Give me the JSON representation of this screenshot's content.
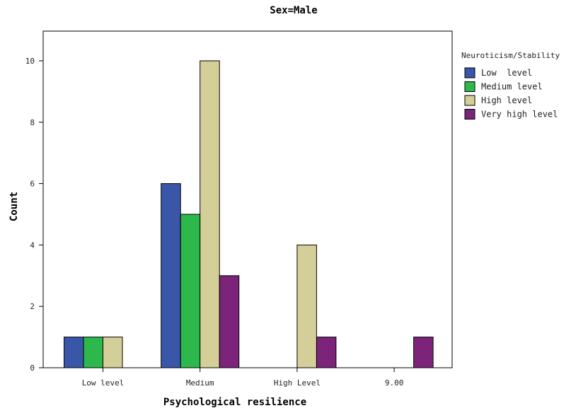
{
  "chart_data": {
    "type": "bar",
    "title": "Sex=Male",
    "xlabel": "Psychological resilience",
    "ylabel": "Count",
    "categories": [
      "Low level",
      "Medium",
      "High Level",
      "9.00"
    ],
    "ylim": [
      0,
      11
    ],
    "yticks": [
      0,
      2,
      4,
      6,
      8,
      10
    ],
    "grid": false,
    "legend": {
      "title": "Neuroticism/Stability",
      "placement": "right",
      "labels": [
        "Low  level",
        "Medium level",
        "High level",
        "Very high level"
      ]
    },
    "series": [
      {
        "name": "Low  level",
        "color": "#3a56a8",
        "values": [
          1,
          6,
          0,
          0
        ]
      },
      {
        "name": "Medium level",
        "color": "#2db84b",
        "values": [
          1,
          5,
          0,
          0
        ]
      },
      {
        "name": "High level",
        "color": "#d4cf99",
        "values": [
          1,
          10,
          4,
          0
        ]
      },
      {
        "name": "Very high level",
        "color": "#7c2479",
        "values": [
          0,
          3,
          1,
          1
        ]
      }
    ]
  }
}
